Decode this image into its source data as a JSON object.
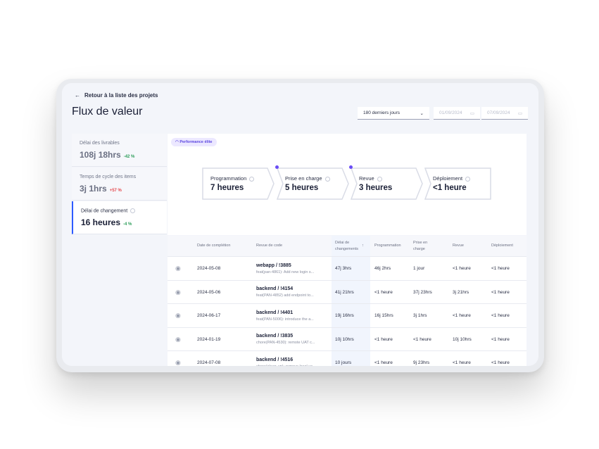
{
  "back_label": "Retour à la liste des projets",
  "title": "Flux de valeur",
  "filters": {
    "range": "180 derniers jours",
    "start_date": "01/09/2024",
    "end_date": "07/09/2024"
  },
  "metrics": [
    {
      "label": "Délai des livrables",
      "value": "108j 18hrs",
      "delta": "-42 %",
      "delta_color": "#2e9e5b"
    },
    {
      "label": "Temps de cycle des items",
      "value": "3j 1hrs",
      "delta": "+57 %",
      "delta_color": "#e5484d"
    },
    {
      "label": "Délai de changement",
      "value": "16 heures",
      "delta": "-4 %",
      "delta_color": "#2e9e5b"
    }
  ],
  "badge": "Performance élite",
  "steps": [
    {
      "label": "Programmation",
      "value": "7 heures"
    },
    {
      "label": "Prise en charge",
      "value": "5 heures"
    },
    {
      "label": "Revue",
      "value": "3 heures"
    },
    {
      "label": "Déploiement",
      "value": "<1 heure"
    }
  ],
  "table": {
    "headers": [
      "Date de complétion",
      "Revue de code",
      "Délai de changements",
      "Programmation",
      "Prise en charge",
      "Revue",
      "Déploiement"
    ],
    "rows": [
      {
        "date": "2024-05-08",
        "repo": "webapp / !3885",
        "msg": "feat(pan-4861): Add new login s...",
        "lead": "47j 3hrs",
        "prog": "46j 2hrs",
        "prise": "1 jour",
        "revue": "<1 heure",
        "deploy": "<1 heure"
      },
      {
        "date": "2024-05-06",
        "repo": "backend / !4154",
        "msg": "feat(PAN-4852) add endpoint to...",
        "lead": "41j 21hrs",
        "prog": "<1 heure",
        "prise": "37j 23hrs",
        "revue": "3j 21hrs",
        "deploy": "<1 heure"
      },
      {
        "date": "2024-06-17",
        "repo": "backend / !4401",
        "msg": "feat(PAN-5006): introduce the a...",
        "lead": "19j 16hrs",
        "prog": "16j 15hrs",
        "prise": "3j 1hrs",
        "revue": "<1 heure",
        "deploy": "<1 heure"
      },
      {
        "date": "2024-01-19",
        "repo": "backend / !3835",
        "msg": "chore(PAN-4530): remote UAT c...",
        "lead": "10j 10hrs",
        "prog": "<1 heure",
        "prise": "<1 heure",
        "revue": "10j 10hrs",
        "deploy": "<1 heure"
      },
      {
        "date": "2024-07-08",
        "repo": "backend / !4516",
        "msg": "chore(clean-up): remove local us...",
        "lead": "10 jours",
        "prog": "<1 heure",
        "prise": "9j 23hrs",
        "revue": "<1 heure",
        "deploy": "<1 heure"
      }
    ]
  }
}
